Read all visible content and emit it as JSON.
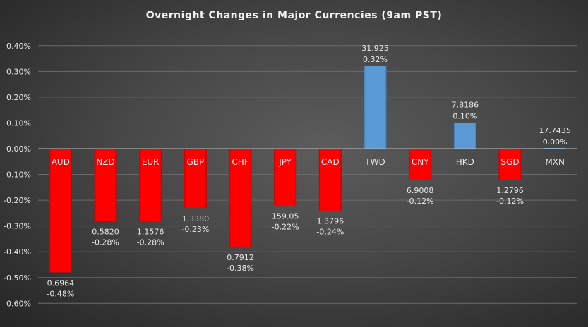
{
  "chart_data": {
    "type": "bar",
    "title": "Overnight Changes in Major Currencies (9am PST)",
    "xlabel": "",
    "ylabel": "",
    "ylim": [
      -0.6,
      0.4
    ],
    "yticks": [
      "0.40%",
      "0.30%",
      "0.20%",
      "0.10%",
      "0.00%",
      "-0.10%",
      "-0.20%",
      "-0.30%",
      "-0.40%",
      "-0.50%",
      "-0.60%"
    ],
    "grid": true,
    "legend": "none",
    "categories": [
      "AUD",
      "NZD",
      "EUR",
      "GBP",
      "CHF",
      "JPY",
      "CAD",
      "TWD",
      "CNY",
      "HKD",
      "SGD",
      "MXN"
    ],
    "values": [
      -0.48,
      -0.28,
      -0.28,
      -0.23,
      -0.38,
      -0.22,
      -0.24,
      0.32,
      -0.12,
      0.1,
      -0.12,
      0.0
    ],
    "value_labels": [
      "-0.48%",
      "-0.28%",
      "-0.28%",
      "-0.23%",
      "-0.38%",
      "-0.22%",
      "-0.24%",
      "0.32%",
      "-0.12%",
      "0.10%",
      "-0.12%",
      "0.00%"
    ],
    "rates": [
      "0.6964",
      "0.5820",
      "1.1576",
      "1.3380",
      "0.7912",
      "159.05",
      "1.3796",
      "31.925",
      "6.9008",
      "7.8186",
      "1.2796",
      "17.7435"
    ],
    "colors": {
      "negative": "#ff0000",
      "positive": "#5b9bd5",
      "grid": "#6a6a6a",
      "axis": "#bfbfbf"
    }
  }
}
